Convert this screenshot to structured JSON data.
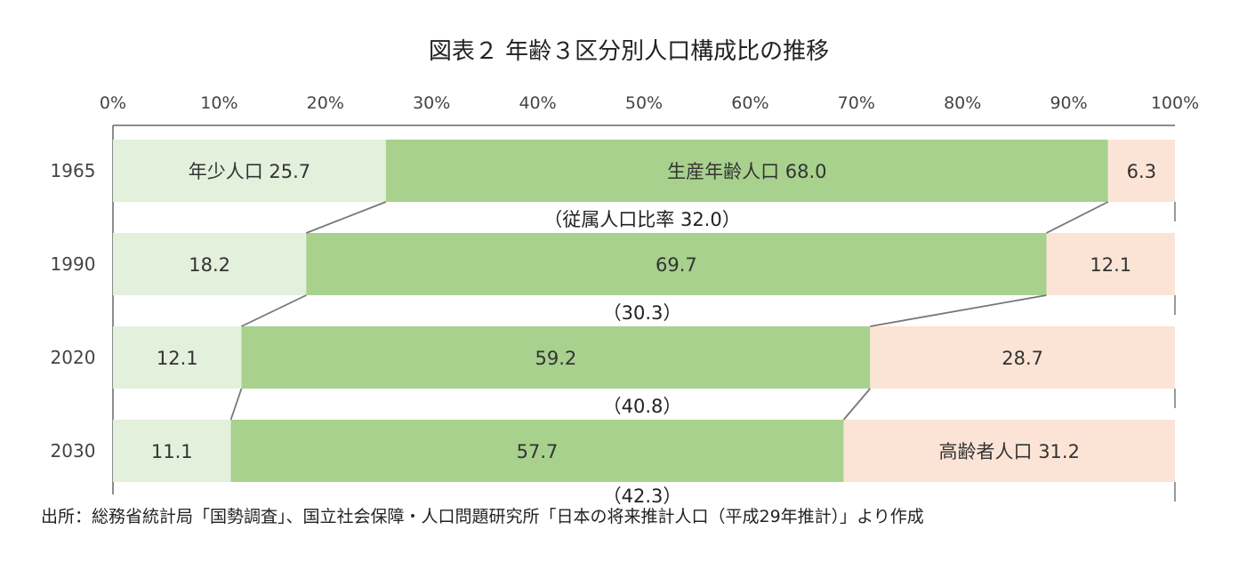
{
  "chart_data": {
    "type": "bar",
    "orientation": "horizontal",
    "stacked": "percent",
    "title": "図表２ 年齢３区分別人口構成比の推移",
    "x_ticks": [
      "0%",
      "10%",
      "20%",
      "30%",
      "40%",
      "50%",
      "60%",
      "70%",
      "80%",
      "90%",
      "100%"
    ],
    "xlim": [
      0,
      100
    ],
    "categories": [
      "1965",
      "1990",
      "2020",
      "2030"
    ],
    "series": [
      {
        "name": "年少人口",
        "values": [
          25.7,
          18.2,
          12.1,
          11.1
        ],
        "color": "#e3f0dc"
      },
      {
        "name": "生産年齢人口",
        "values": [
          68.0,
          69.7,
          59.2,
          57.7
        ],
        "color": "#a8d18d"
      },
      {
        "name": "高齢者人口",
        "values": [
          6.3,
          12.1,
          28.7,
          31.2
        ],
        "color": "#fbe4d6"
      }
    ],
    "segment_labels": [
      [
        "年少人口 25.7",
        "生産年齢人口 68.0",
        "6.3"
      ],
      [
        "18.2",
        "69.7",
        "12.1"
      ],
      [
        "12.1",
        "59.2",
        "28.7"
      ],
      [
        "11.1",
        "57.7",
        "高齢者人口 31.2"
      ]
    ],
    "dependency_ratio": [
      32.0,
      30.3,
      40.8,
      42.3
    ],
    "dependency_labels": [
      "（従属人口比率 32.0）",
      "（30.3）",
      "（40.8）",
      "（42.3）"
    ],
    "connector_lines": true,
    "grid": false,
    "legend": "none"
  },
  "source_note": "出所：総務省統計局「国勢調査」、国立社会保障・人口問題研究所「日本の将来推計人口（平成29年推計）」より作成"
}
